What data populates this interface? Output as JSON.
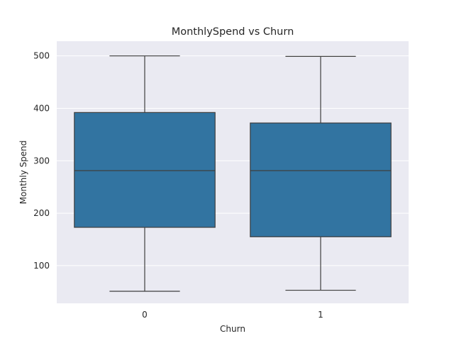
{
  "chart_data": {
    "type": "box",
    "title": "MonthlySpend vs Churn",
    "xlabel": "Churn",
    "ylabel": "Monthly Spend",
    "categories": [
      "0",
      "1"
    ],
    "boxes": [
      {
        "category": "0",
        "whisker_low": 51,
        "q1": 173,
        "median": 281,
        "q3": 392,
        "whisker_high": 500
      },
      {
        "category": "1",
        "whisker_low": 53,
        "q1": 155,
        "median": 281,
        "q3": 372,
        "whisker_high": 499
      }
    ],
    "ylim": [
      28,
      528
    ],
    "yticks": [
      100,
      200,
      300,
      400,
      500
    ],
    "grid": true,
    "legend": "none",
    "colors": {
      "box_fill": "#3274a1",
      "box_edge": "#3f3f3f",
      "plot_background": "#eaeaf2",
      "grid": "#ffffff"
    }
  }
}
